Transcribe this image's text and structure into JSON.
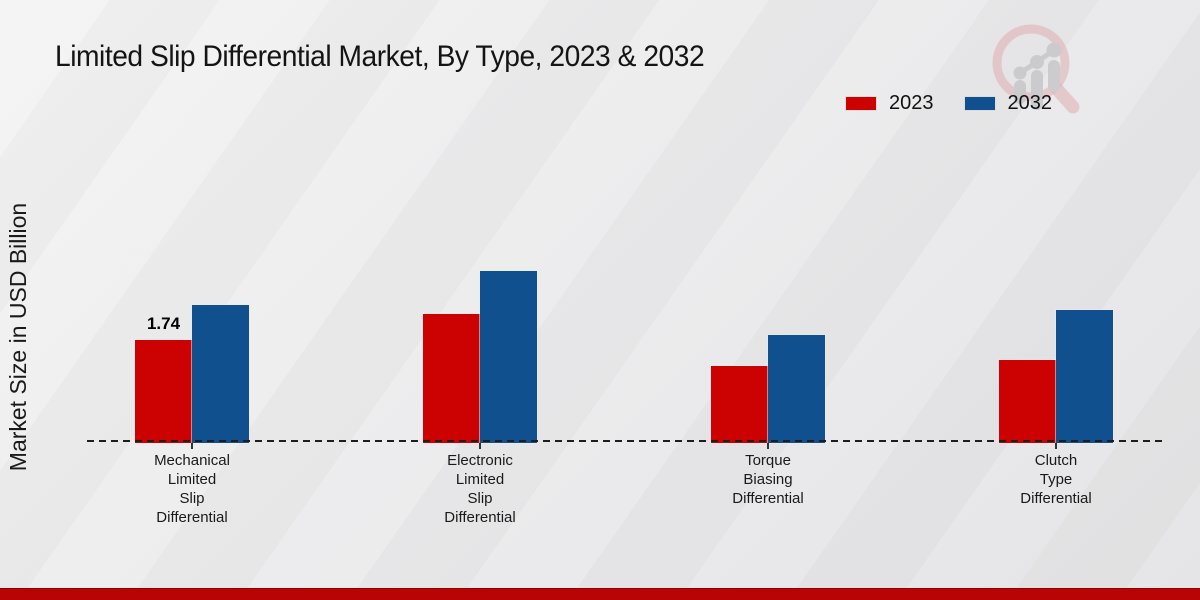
{
  "title": "Limited Slip Differential Market, By Type, 2023 & 2032",
  "ylabel": "Market Size in USD Billion",
  "legend": {
    "items": [
      {
        "label": "2023",
        "color": "#cc0101"
      },
      {
        "label": "2032",
        "color": "#11508f"
      }
    ]
  },
  "colors": {
    "series_2023": "#cc0101",
    "series_2032": "#11508f",
    "footer_bar": "#b80404",
    "background": "#ebebed"
  },
  "logo": {
    "name": "market-research-magnifier-watermark"
  },
  "chart_data": {
    "type": "bar",
    "title": "Limited Slip Differential Market, By Type, 2023 & 2032",
    "xlabel": "",
    "ylabel": "Market Size in USD Billion",
    "ylim": [
      0,
      3.5
    ],
    "grid": false,
    "legend_position": "top-right",
    "baseline_style": "dashed",
    "categories": [
      "Mechanical Limited Slip Differential",
      "Electronic Limited Slip Differential",
      "Torque Biasing Differential",
      "Clutch Type Differential"
    ],
    "categories_lines": [
      [
        "Mechanical",
        "Limited",
        "Slip",
        "Differential"
      ],
      [
        "Electronic",
        "Limited",
        "Slip",
        "Differential"
      ],
      [
        "Torque",
        "Biasing",
        "Differential"
      ],
      [
        "Clutch",
        "Type",
        "Differential"
      ]
    ],
    "series": [
      {
        "name": "2023",
        "color": "#cc0101",
        "values": [
          1.74,
          2.18,
          1.3,
          1.4
        ]
      },
      {
        "name": "2032",
        "color": "#11508f",
        "values": [
          2.33,
          2.9,
          1.82,
          2.24
        ]
      }
    ],
    "value_labels": [
      {
        "series_index": 0,
        "category_index": 0,
        "text": "1.74"
      }
    ]
  }
}
